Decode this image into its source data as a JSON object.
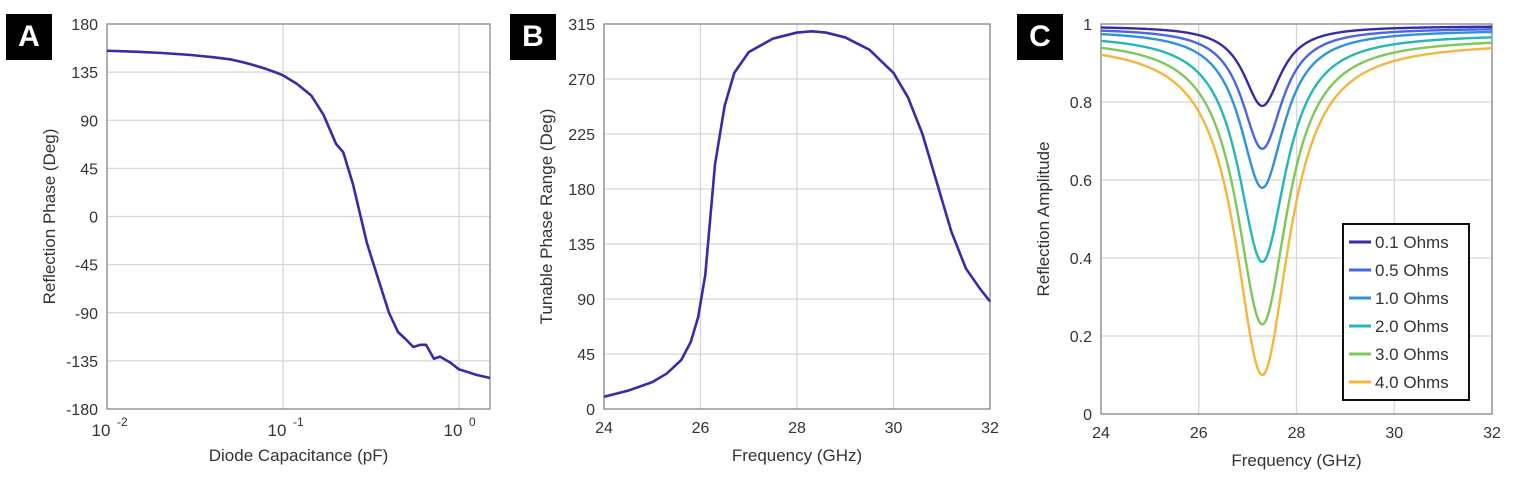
{
  "panels": [
    {
      "label": "A"
    },
    {
      "label": "B"
    },
    {
      "label": "C"
    }
  ],
  "chart_data": [
    {
      "type": "line",
      "xlabel": "Diode Capacitance (pF)",
      "ylabel": "Reflection Phase (Deg)",
      "xscale": "log",
      "xlim": [
        0.01,
        1.5
      ],
      "ylim": [
        -180,
        180
      ],
      "xticks": [
        0.01,
        0.1,
        1
      ],
      "xtick_labels": [
        {
          "base": "10",
          "exp": "-2"
        },
        {
          "base": "10",
          "exp": "-1"
        },
        {
          "base": "10",
          "exp": "0"
        }
      ],
      "yticks": [
        -180,
        -135,
        -90,
        -45,
        0,
        45,
        90,
        135,
        180
      ],
      "grid": true,
      "series": [
        {
          "color": "#3b2aa8",
          "x": [
            0.01,
            0.015,
            0.02,
            0.03,
            0.04,
            0.05,
            0.06,
            0.07,
            0.08,
            0.09,
            0.1,
            0.12,
            0.145,
            0.17,
            0.2,
            0.22,
            0.25,
            0.3,
            0.35,
            0.4,
            0.45,
            0.5,
            0.55,
            0.6,
            0.65,
            0.72,
            0.78,
            0.9,
            1.0,
            1.1,
            1.25,
            1.5
          ],
          "y": [
            155,
            154,
            153,
            151,
            149,
            147,
            144,
            141,
            138,
            135,
            132,
            124,
            113,
            95,
            68,
            60,
            30,
            -25,
            -60,
            -90,
            -108,
            -115,
            -122,
            -120,
            -120,
            -133,
            -131,
            -137,
            -143,
            -145,
            -148,
            -151
          ]
        }
      ]
    },
    {
      "type": "line",
      "xlabel": "Frequency (GHz)",
      "ylabel": "Tunable Phase Range (Deg)",
      "xlim": [
        24,
        32
      ],
      "ylim": [
        0,
        315
      ],
      "xticks": [
        24,
        26,
        28,
        30,
        32
      ],
      "yticks": [
        0,
        45,
        90,
        135,
        180,
        225,
        270,
        315
      ],
      "grid": true,
      "series": [
        {
          "color": "#3b2aa8",
          "x": [
            24,
            24.5,
            25,
            25.3,
            25.6,
            25.8,
            25.95,
            26.1,
            26.2,
            26.3,
            26.5,
            26.7,
            27,
            27.5,
            28,
            28.3,
            28.6,
            29,
            29.5,
            30,
            30.3,
            30.6,
            30.9,
            31.2,
            31.5,
            31.8,
            32
          ],
          "y": [
            10,
            15,
            22,
            29,
            40,
            55,
            75,
            110,
            155,
            200,
            248,
            275,
            292,
            303,
            308,
            309,
            308,
            304,
            294,
            275,
            255,
            225,
            185,
            145,
            115,
            98,
            88
          ]
        }
      ]
    },
    {
      "type": "line",
      "xlabel": "Frequency (GHz)",
      "ylabel": "Reflection Amplitude",
      "xlim": [
        24,
        32
      ],
      "ylim": [
        0,
        1
      ],
      "xticks": [
        24,
        26,
        28,
        30,
        32
      ],
      "yticks": [
        0,
        0.2,
        0.4,
        0.6,
        0.8,
        1
      ],
      "ytick_labels": [
        "0",
        "0.2",
        "0.4",
        "0.6",
        "0.8",
        "1"
      ],
      "grid": true,
      "legend": "right",
      "resonance_x": 27.3,
      "series": [
        {
          "name": "0.1 Ohms",
          "color": "#3b2aa8",
          "min": 0.79,
          "width": 0.85,
          "tail": 0.995
        },
        {
          "name": "0.5 Ohms",
          "color": "#4a66e8",
          "min": 0.68,
          "width": 0.92,
          "tail": 0.99
        },
        {
          "name": "1.0 Ohms",
          "color": "#2f93dc",
          "min": 0.58,
          "width": 1.0,
          "tail": 0.985
        },
        {
          "name": "2.0 Ohms",
          "color": "#22b8b4",
          "min": 0.39,
          "width": 1.08,
          "tail": 0.975
        },
        {
          "name": "3.0 Ohms",
          "color": "#7ec85a",
          "min": 0.23,
          "width": 1.15,
          "tail": 0.965
        },
        {
          "name": "4.0 Ohms",
          "color": "#f4b63c",
          "min": 0.1,
          "width": 1.22,
          "tail": 0.955
        }
      ]
    }
  ]
}
